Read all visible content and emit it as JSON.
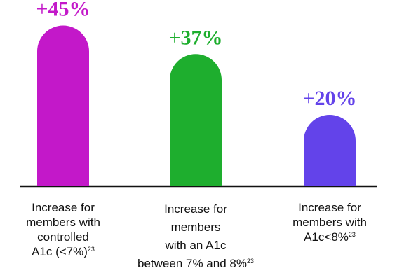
{
  "chart_data": {
    "type": "bar",
    "title": "",
    "xlabel": "",
    "ylabel": "",
    "ylim": [
      0,
      50
    ],
    "grid": false,
    "bars": [
      {
        "value": 45,
        "label": "+45%",
        "label_sign": "+",
        "label_number": "45%",
        "color": "#C318C9",
        "category_lines": [
          {
            "text": "Increase for",
            "sup": ""
          },
          {
            "text": "members with",
            "sup": ""
          },
          {
            "text": "controlled",
            "sup": ""
          },
          {
            "text": "A1c (<7%)",
            "sup": "23"
          }
        ]
      },
      {
        "value": 37,
        "label": "+37%",
        "label_sign": "+",
        "label_number": "37%",
        "color": "#1EAE2E",
        "category_lines": [
          {
            "text": "Increase for",
            "sup": ""
          },
          {
            "text": "members",
            "sup": ""
          },
          {
            "text": "with an A1c",
            "sup": ""
          },
          {
            "text": "between 7% and 8%",
            "sup": "23"
          }
        ]
      },
      {
        "value": 20,
        "label": "+20%",
        "label_sign": "+",
        "label_number": "20%",
        "color": "#6343EA",
        "category_lines": [
          {
            "text": "Increase for",
            "sup": ""
          },
          {
            "text": "members with",
            "sup": ""
          },
          {
            "text": "A1c<8%",
            "sup": "23"
          }
        ]
      }
    ]
  }
}
